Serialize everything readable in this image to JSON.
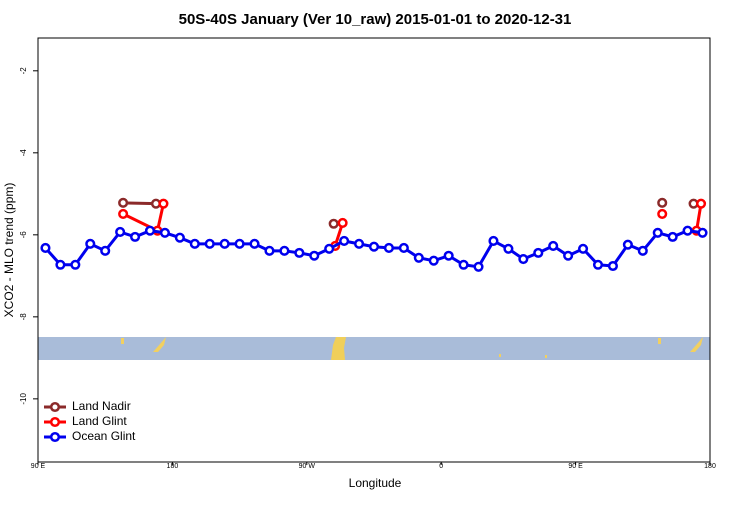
{
  "chart_data": {
    "type": "line",
    "title": "50S-40S January (Ver 10_raw)   2015-01-01 to 2020-12-31",
    "x_label": "Longitude",
    "y_label": "XCO2 - MLO trend (ppm)",
    "xlim": [
      90,
      540
    ],
    "ylim": [
      -11.54,
      -1.2
    ],
    "xticks": [
      {
        "value": 90,
        "label": "90 E"
      },
      180,
      {
        "value": 270,
        "label": "90 W"
      },
      {
        "value": 360,
        "label": "0"
      },
      {
        "value": 450,
        "label": "90 E"
      },
      {
        "value": 540,
        "label": "180"
      }
    ],
    "yticks": [
      -2,
      -4,
      -6,
      -8,
      -10
    ],
    "legend": "bottom-left",
    "series": [
      {
        "name": "Land Nadir",
        "color": "#8b2a2a",
        "x": [
          147,
          169,
          null,
          288,
          null,
          508,
          null,
          529
        ],
        "values": [
          -5.22,
          -5.24,
          null,
          -5.73,
          null,
          -5.22,
          null,
          -5.24
        ]
      },
      {
        "name": "Land Glint",
        "color": "#ff0000",
        "x": [
          147,
          170,
          174,
          null,
          289,
          294,
          null,
          508,
          null,
          531,
          534
        ],
        "values": [
          -5.49,
          -5.9,
          -5.24,
          null,
          -6.27,
          -5.71,
          null,
          -5.49,
          null,
          -5.9,
          -5.24
        ]
      },
      {
        "name": "Ocean Glint",
        "color": "#0000ee",
        "x": [
          95,
          105,
          115,
          125,
          135,
          145,
          155,
          165,
          175,
          185,
          195,
          205,
          215,
          225,
          235,
          245,
          255,
          265,
          275,
          285,
          295,
          305,
          315,
          325,
          335,
          345,
          355,
          365,
          375,
          385,
          395,
          405,
          415,
          425,
          435,
          445,
          455,
          465,
          475,
          485,
          495,
          505,
          515,
          525,
          535
        ],
        "values": [
          -6.32,
          -6.73,
          -6.73,
          -6.22,
          -6.39,
          -5.93,
          -6.05,
          -5.9,
          -5.95,
          -6.07,
          -6.22,
          -6.22,
          -6.22,
          -6.22,
          -6.22,
          -6.39,
          -6.39,
          -6.44,
          -6.51,
          -6.34,
          -6.15,
          -6.22,
          -6.29,
          -6.32,
          -6.32,
          -6.56,
          -6.63,
          -6.51,
          -6.73,
          -6.78,
          -6.15,
          -6.34,
          -6.59,
          -6.44,
          -6.27,
          -6.51,
          -6.34,
          -6.73,
          -6.76,
          -6.24,
          -6.39,
          -5.95,
          -6.05,
          -5.9,
          -5.95
        ]
      }
    ]
  }
}
